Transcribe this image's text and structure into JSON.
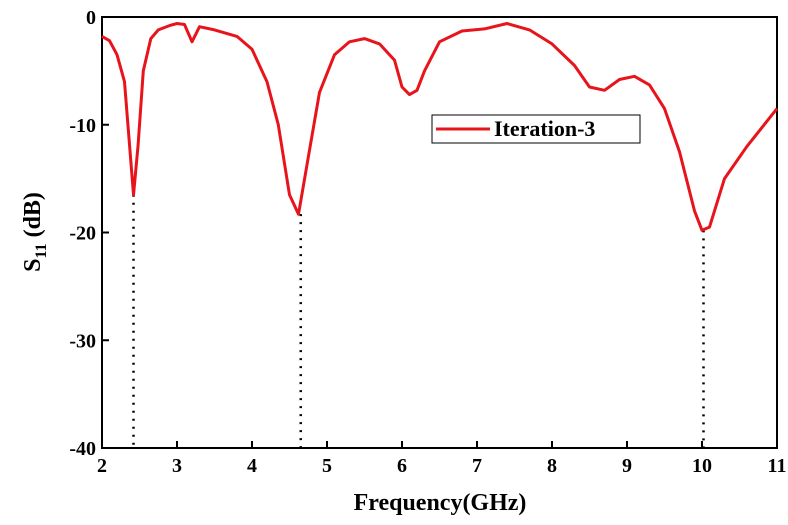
{
  "chart_data": {
    "type": "line",
    "xlabel": "Frequency(GHz)",
    "ylabel": [
      "S",
      "11",
      "(dB)"
    ],
    "x": [
      2.0,
      2.1,
      2.2,
      2.3,
      2.38,
      2.42,
      2.48,
      2.55,
      2.65,
      2.75,
      2.9,
      3.0,
      3.1,
      3.2,
      3.3,
      3.5,
      3.8,
      4.0,
      4.2,
      4.35,
      4.5,
      4.62,
      4.75,
      4.9,
      5.1,
      5.3,
      5.5,
      5.7,
      5.9,
      6.0,
      6.1,
      6.2,
      6.3,
      6.5,
      6.8,
      7.1,
      7.4,
      7.7,
      8.0,
      8.3,
      8.5,
      8.7,
      8.9,
      9.1,
      9.3,
      9.5,
      9.7,
      9.9,
      10.0,
      10.1,
      10.3,
      10.6,
      11.0
    ],
    "series": [
      {
        "name": "Iteration-3",
        "color": "#e8141c",
        "values": [
          -1.8,
          -2.2,
          -3.5,
          -6,
          -13,
          -16.5,
          -12,
          -5,
          -2,
          -1.2,
          -0.8,
          -0.6,
          -0.7,
          -2.3,
          -0.9,
          -1.2,
          -1.8,
          -3,
          -6,
          -10,
          -16.5,
          -18.3,
          -13,
          -7,
          -3.5,
          -2.3,
          -2.0,
          -2.5,
          -4,
          -6.5,
          -7.2,
          -6.8,
          -5,
          -2.3,
          -1.3,
          -1.1,
          -0.6,
          -1.2,
          -2.5,
          -4.5,
          -6.5,
          -6.8,
          -5.8,
          -5.5,
          -6.3,
          -8.5,
          -12.5,
          -18,
          -19.8,
          -19.5,
          -15,
          -12,
          -8.5
        ]
      }
    ],
    "markers": [
      {
        "x": 2.42,
        "y": -16.5
      },
      {
        "x": 4.65,
        "y": -18.3
      },
      {
        "x": 10.02,
        "y": -19.8
      }
    ],
    "xlim": [
      2,
      11
    ],
    "xticks": [
      2,
      3,
      4,
      5,
      6,
      7,
      8,
      9,
      10,
      11
    ],
    "ylim": [
      -40,
      0
    ],
    "yticks": [
      -40,
      -30,
      -20,
      -10,
      0
    ],
    "legend": "upper-right"
  }
}
